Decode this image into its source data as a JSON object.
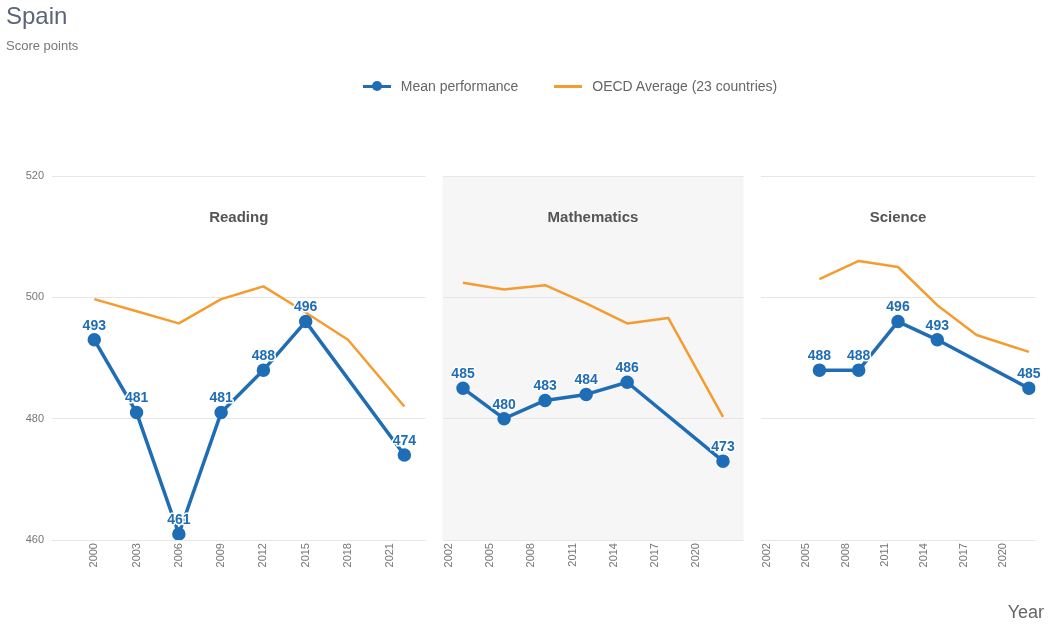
{
  "chart_data": [
    {
      "type": "line",
      "title": "Spain",
      "subtitle": "Score points",
      "legend": "top",
      "annotations": [
        "Reading"
      ],
      "x": [
        2000,
        2003,
        2006,
        2009,
        2012,
        2015,
        2018,
        2022
      ],
      "xlim": [
        1997,
        2023.5
      ],
      "xticks": [
        2000,
        2003,
        2006,
        2009,
        2012,
        2015,
        2018,
        2021
      ],
      "ylim": [
        460,
        520
      ],
      "yticks": [
        460,
        480,
        500,
        520
      ],
      "grid": "y",
      "series": [
        {
          "name": "Mean performance",
          "color": "#1f6db5",
          "marker": "circle",
          "x": [
            2000,
            2003,
            2006,
            2009,
            2012,
            2015,
            2022
          ],
          "values": [
            493,
            481,
            461,
            481,
            488,
            496,
            474
          ],
          "value_labels": [
            "493",
            "481",
            "461",
            "481",
            "488",
            "496",
            "474"
          ]
        },
        {
          "name": "OECD Average (23 countries)",
          "color": "#f59c31",
          "marker": "none",
          "values": [
            499.7,
            497.7,
            495.7,
            499.7,
            501.8,
            497.5,
            493,
            482
          ]
        }
      ]
    },
    {
      "type": "line",
      "annotations": [
        "Mathematics"
      ],
      "x": [
        2003,
        2006,
        2009,
        2012,
        2015,
        2018,
        2022
      ],
      "xlim": [
        2001.5,
        2023.5
      ],
      "xticks": [
        2002,
        2005,
        2008,
        2011,
        2014,
        2017,
        2020
      ],
      "ylim": [
        460,
        520
      ],
      "yticks": [
        460,
        480,
        500,
        520
      ],
      "grid": "y",
      "tick_labels": "x",
      "series": [
        {
          "color": "#1f6db5",
          "marker": "circle",
          "values": [
            485,
            480,
            483,
            484,
            486,
            null,
            473
          ],
          "value_labels": [
            "485",
            "480",
            "483",
            "484",
            "486",
            null,
            "473"
          ]
        },
        {
          "color": "#f59c31",
          "marker": "none",
          "values": [
            502.4,
            501.3,
            502,
            499,
            495.7,
            496.6,
            480.3
          ]
        }
      ]
    },
    {
      "type": "line",
      "annotations": [
        "Science"
      ],
      "xlabel": "Year",
      "x": [
        2006,
        2009,
        2012,
        2015,
        2018,
        2022
      ],
      "xlim": [
        2001.5,
        2022.5
      ],
      "xticks": [
        2002,
        2005,
        2008,
        2011,
        2014,
        2017,
        2020
      ],
      "ylim": [
        460,
        520
      ],
      "yticks": [
        460,
        480,
        500,
        520
      ],
      "grid": "y",
      "tick_labels": "x",
      "series": [
        {
          "color": "#1f6db5",
          "marker": "circle",
          "values": [
            488,
            488,
            496,
            493,
            null,
            485
          ],
          "value_labels": [
            "488",
            "488",
            "496",
            "493",
            null,
            "485"
          ]
        },
        {
          "color": "#f59c31",
          "marker": "none",
          "values": [
            503,
            506,
            505,
            498.7,
            493.8,
            491
          ]
        }
      ]
    }
  ]
}
